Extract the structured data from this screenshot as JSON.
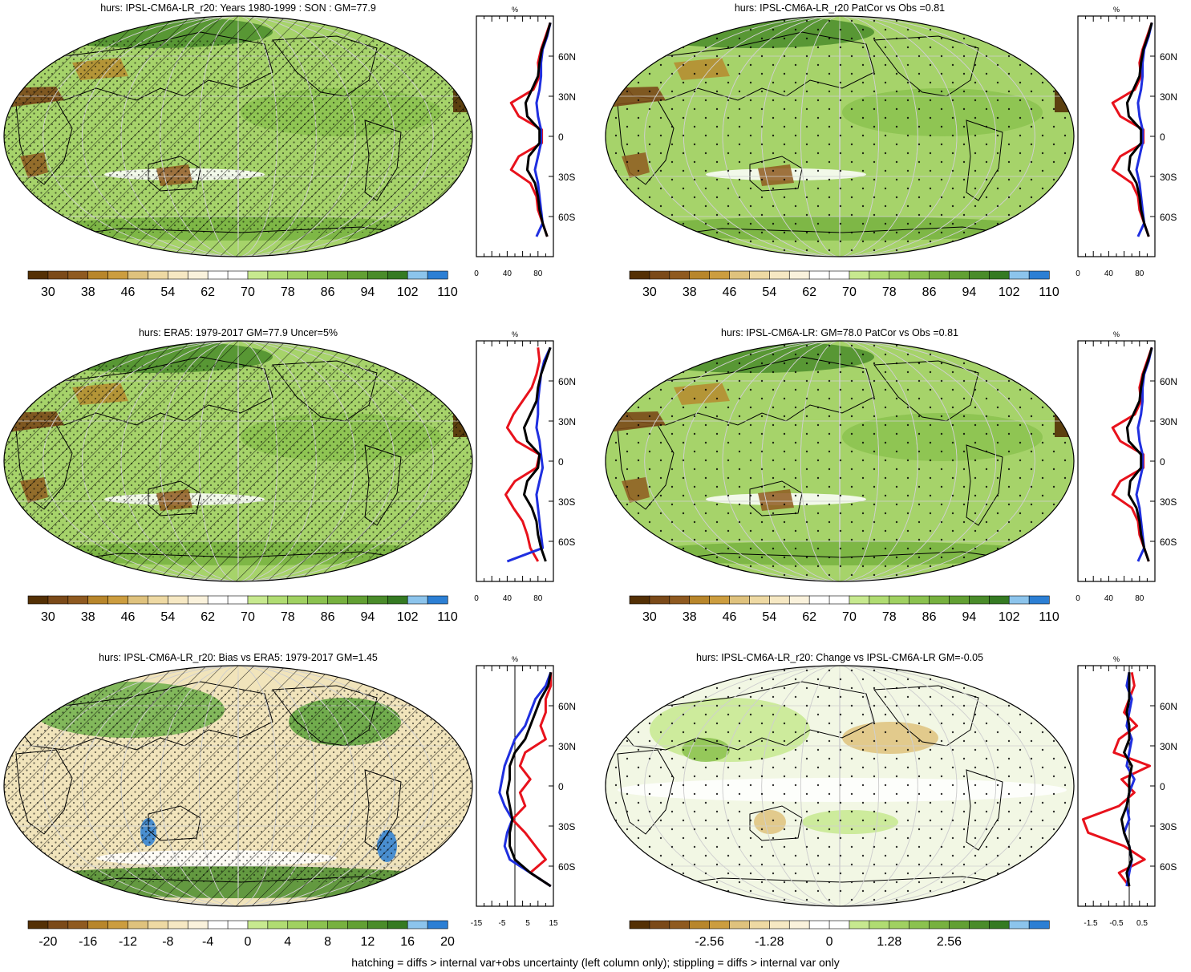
{
  "colors": {
    "abs_scale": [
      "#543005",
      "#7b4a19",
      "#8f5a20",
      "#b8862b",
      "#cc9d3f",
      "#dfc27d",
      "#eed9a3",
      "#f6e8c3",
      "#faf2dc",
      "#ffffff",
      "#ffffff",
      "#c7e98f",
      "#b0dc72",
      "#a0d161",
      "#8bc24f",
      "#77b13f",
      "#62a033",
      "#4a8c2a",
      "#357a22",
      "#8cc4ec",
      "#2c7fd4"
    ],
    "diff_scale": [
      "#543005",
      "#7b4a19",
      "#8f5a20",
      "#b8862b",
      "#cc9d3f",
      "#dfc27d",
      "#eed9a3",
      "#f6e8c3",
      "#faf2dc",
      "#ffffff",
      "#ffffff",
      "#c7e98f",
      "#b0dc72",
      "#a0d161",
      "#8bc24f",
      "#77b13f",
      "#62a033",
      "#4a8c2a",
      "#357a22",
      "#8cc4ec",
      "#2c7fd4"
    ],
    "line_model": "#e8121c",
    "line_obs": "#1f2fe0",
    "line_mean": "#000000",
    "map_fill": "#a6d36a"
  },
  "panels": [
    {
      "title": "hurs: IPSL-CM6A-LR_r20: Years 1980-1999 : SON : GM=77.9",
      "colorbar_labels": [
        "30",
        "38",
        "46",
        "54",
        "62",
        "70",
        "78",
        "86",
        "94",
        "102",
        "110"
      ],
      "zonal_unit": "%",
      "zonal_xticks": [
        "0",
        "40",
        "80"
      ],
      "lat_labels": [
        "60N",
        "30N",
        "0",
        "30S",
        "60S"
      ]
    },
    {
      "title": "hurs: IPSL-CM6A-LR_r20 PatCor vs Obs =0.81",
      "colorbar_labels": [
        "30",
        "38",
        "46",
        "54",
        "62",
        "70",
        "78",
        "86",
        "94",
        "102",
        "110"
      ],
      "zonal_unit": "%",
      "zonal_xticks": [
        "0",
        "40",
        "80"
      ],
      "lat_labels": [
        "60N",
        "30N",
        "0",
        "30S",
        "60S"
      ]
    },
    {
      "title": "hurs: ERA5: 1979-2017 GM=77.9 Uncer=5%",
      "colorbar_labels": [
        "30",
        "38",
        "46",
        "54",
        "62",
        "70",
        "78",
        "86",
        "94",
        "102",
        "110"
      ],
      "zonal_unit": "%",
      "zonal_xticks": [
        "0",
        "40",
        "80"
      ],
      "lat_labels": [
        "60N",
        "30N",
        "0",
        "30S",
        "60S"
      ]
    },
    {
      "title": "hurs: IPSL-CM6A-LR: GM=78.0 PatCor vs Obs =0.81",
      "colorbar_labels": [
        "30",
        "38",
        "46",
        "54",
        "62",
        "70",
        "78",
        "86",
        "94",
        "102",
        "110"
      ],
      "zonal_unit": "%",
      "zonal_xticks": [
        "0",
        "40",
        "80"
      ],
      "lat_labels": [
        "60N",
        "30N",
        "0",
        "30S",
        "60S"
      ]
    },
    {
      "title": "hurs: IPSL-CM6A-LR_r20: Bias vs ERA5: 1979-2017  GM=1.45",
      "colorbar_labels": [
        "-20",
        "-16",
        "-12",
        "-8",
        "-4",
        "0",
        "4",
        "8",
        "12",
        "16",
        "20"
      ],
      "zonal_unit": "%",
      "zonal_xticks": [
        "-15",
        "-5",
        "5",
        "15"
      ],
      "lat_labels": [
        "60N",
        "30N",
        "0",
        "30S",
        "60S"
      ]
    },
    {
      "title": "hurs: IPSL-CM6A-LR_r20: Change vs IPSL-CM6A-LR GM=-0.05",
      "colorbar_labels": [
        "-2.56",
        "-1.28",
        "0",
        "1.28",
        "2.56"
      ],
      "zonal_unit": "%",
      "zonal_xticks": [
        "-1.5",
        "-0.5",
        "0.5"
      ],
      "lat_labels": [
        "60N",
        "30N",
        "0",
        "30S",
        "60S"
      ]
    }
  ],
  "chart_data": [
    {
      "type": "line",
      "title": "hurs: IPSL-CM6A-LR_r20: Years 1980-1999 : SON : GM=77.9",
      "xlim": [
        0,
        100
      ],
      "lat": [
        85,
        75,
        65,
        55,
        45,
        35,
        25,
        15,
        5,
        -5,
        -15,
        -25,
        -35,
        -45,
        -55,
        -65,
        -75
      ],
      "series": [
        {
          "values": [
            96,
            90,
            84,
            80,
            82,
            74,
            45,
            55,
            85,
            85,
            55,
            45,
            70,
            78,
            80,
            86,
            92
          ]
        },
        {
          "values": [
            96,
            92,
            86,
            84,
            84,
            82,
            78,
            80,
            84,
            84,
            80,
            76,
            80,
            82,
            84,
            86,
            78
          ]
        },
        {
          "values": [
            96,
            91,
            85,
            82,
            80,
            72,
            64,
            66,
            82,
            82,
            68,
            66,
            76,
            80,
            82,
            86,
            92
          ]
        }
      ]
    },
    {
      "type": "line",
      "title": "hurs: IPSL-CM6A-LR_r20 PatCor vs Obs =0.81",
      "xlim": [
        0,
        100
      ],
      "lat": [
        85,
        75,
        65,
        55,
        45,
        35,
        25,
        15,
        5,
        -5,
        -15,
        -25,
        -35,
        -45,
        -55,
        -65,
        -75
      ],
      "series": [
        {
          "values": [
            96,
            90,
            84,
            80,
            82,
            74,
            45,
            55,
            85,
            85,
            55,
            45,
            70,
            78,
            80,
            86,
            92
          ]
        },
        {
          "values": [
            96,
            92,
            86,
            84,
            84,
            82,
            78,
            80,
            84,
            84,
            80,
            76,
            80,
            82,
            84,
            86,
            78
          ]
        },
        {
          "values": [
            96,
            91,
            85,
            82,
            80,
            72,
            64,
            66,
            82,
            82,
            68,
            66,
            76,
            80,
            82,
            86,
            92
          ]
        }
      ]
    },
    {
      "type": "line",
      "title": "hurs: ERA5: 1979-2017 GM=77.9 Uncer=5%",
      "xlim": [
        0,
        100
      ],
      "lat": [
        85,
        75,
        65,
        55,
        45,
        35,
        25,
        15,
        5,
        -5,
        -15,
        -25,
        -35,
        -45,
        -55,
        -65,
        -75
      ],
      "series": [
        {
          "values": [
            80,
            82,
            78,
            72,
            60,
            48,
            40,
            52,
            82,
            78,
            50,
            38,
            48,
            60,
            66,
            70,
            80
          ]
        },
        {
          "values": [
            96,
            88,
            84,
            82,
            80,
            80,
            78,
            82,
            84,
            86,
            82,
            78,
            80,
            82,
            84,
            86,
            40
          ]
        },
        {
          "values": [
            96,
            90,
            84,
            80,
            78,
            70,
            62,
            66,
            82,
            80,
            66,
            62,
            72,
            78,
            80,
            84,
            90
          ]
        }
      ]
    },
    {
      "type": "line",
      "title": "hurs: IPSL-CM6A-LR: GM=78.0 PatCor vs Obs =0.81",
      "xlim": [
        0,
        100
      ],
      "lat": [
        85,
        75,
        65,
        55,
        45,
        35,
        25,
        15,
        5,
        -5,
        -15,
        -25,
        -35,
        -45,
        -55,
        -65,
        -75
      ],
      "series": [
        {
          "values": [
            96,
            90,
            84,
            80,
            82,
            74,
            45,
            55,
            85,
            85,
            55,
            45,
            70,
            78,
            80,
            86,
            92
          ]
        },
        {
          "values": [
            96,
            92,
            86,
            84,
            84,
            82,
            78,
            80,
            84,
            84,
            80,
            76,
            80,
            82,
            84,
            86,
            78
          ]
        },
        {
          "values": [
            96,
            91,
            85,
            82,
            80,
            72,
            64,
            66,
            82,
            82,
            68,
            66,
            76,
            80,
            82,
            86,
            92
          ]
        }
      ]
    },
    {
      "type": "line",
      "title": "hurs: IPSL-CM6A-LR_r20: Bias vs ERA5: 1979-2017  GM=1.45",
      "xlim": [
        -15,
        15
      ],
      "lat": [
        85,
        75,
        65,
        55,
        45,
        35,
        25,
        15,
        5,
        -5,
        -15,
        -25,
        -35,
        -45,
        -55,
        -65,
        -75
      ],
      "series": [
        {
          "values": [
            14,
            14,
            12,
            12,
            10,
            12,
            4,
            2,
            6,
            2,
            4,
            -1,
            4,
            8,
            12,
            6,
            14
          ]
        },
        {
          "values": [
            14,
            12,
            8,
            6,
            4,
            0,
            -2,
            -4,
            -5,
            -6,
            -4,
            -1,
            -3,
            -4,
            -2,
            6,
            14
          ]
        },
        {
          "values": [
            14,
            13,
            10,
            8,
            6,
            4,
            0,
            -2,
            -2,
            -3,
            -2,
            -1,
            -2,
            -2,
            0,
            6,
            14
          ]
        }
      ]
    },
    {
      "type": "line",
      "title": "hurs: IPSL-CM6A-LR_r20: Change vs IPSL-CM6A-LR GM=-0.05",
      "xlim": [
        -2,
        1
      ],
      "lat": [
        85,
        75,
        65,
        55,
        45,
        35,
        25,
        15,
        5,
        -5,
        -15,
        -25,
        -35,
        -45,
        -55,
        -65,
        -75
      ],
      "series": [
        {
          "values": [
            0.1,
            0.2,
            0.0,
            -0.2,
            0.3,
            -0.4,
            -0.6,
            0.8,
            -0.3,
            0.2,
            -0.4,
            -1.8,
            -1.6,
            -0.2,
            0.6,
            -0.4,
            0.0
          ]
        },
        {
          "values": [
            0.0,
            -0.1,
            0.1,
            0.0,
            -0.1,
            0.1,
            0.0,
            -0.1,
            0.2,
            0.0,
            -0.1,
            0.0,
            -0.2,
            0.0,
            0.1,
            0.0,
            -0.1
          ]
        },
        {
          "values": [
            0.0,
            0.0,
            0.0,
            -0.1,
            0.0,
            0.0,
            -0.2,
            0.1,
            0.0,
            0.0,
            -0.1,
            -0.3,
            -0.2,
            0.0,
            0.1,
            -0.1,
            0.0
          ]
        }
      ]
    }
  ],
  "footer": "hatching = diffs > internal var+obs uncertainty (left column only); stippling = diffs > internal var only"
}
